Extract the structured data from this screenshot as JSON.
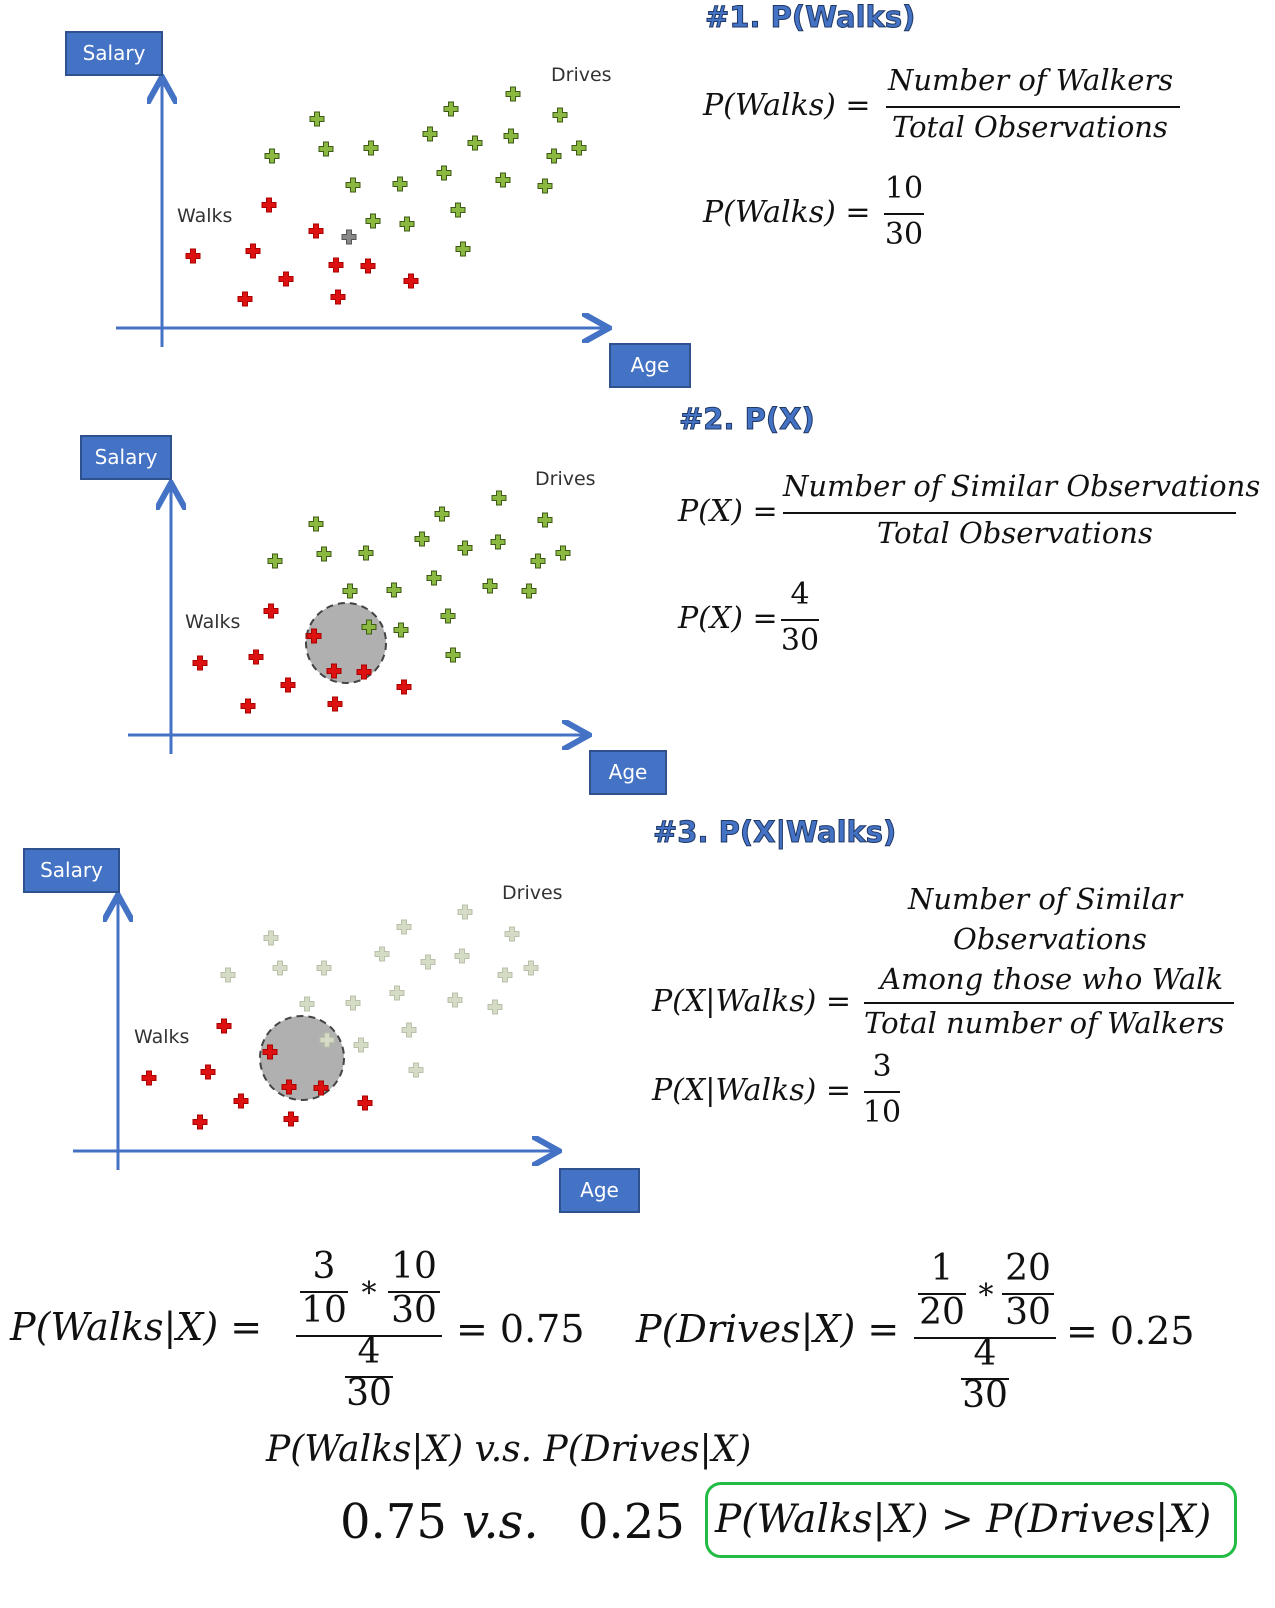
{
  "colors": {
    "axis": "#4472c4",
    "walks": "#dd1111",
    "drives": "#8ab840",
    "drives_faded": "#d4dcc6",
    "gray_point": "#888888",
    "circle": "#b0b0b0",
    "highlight_box": "#22bb44"
  },
  "panels": [
    {
      "heading": "#1. P(Walks)",
      "y_axis_label": "Salary",
      "x_axis_label": "Age",
      "walks_label": "Walks",
      "drives_label": "Drives",
      "formula_lhs": "P(Walks) =",
      "formula_numerator": "Number of Walkers",
      "formula_denominator": "Total Observations",
      "value_lhs": "P(Walks) =",
      "value_numerator": "10",
      "value_denominator": "30"
    },
    {
      "heading": "#2. P(X)",
      "y_axis_label": "Salary",
      "x_axis_label": "Age",
      "walks_label": "Walks",
      "drives_label": "Drives",
      "formula_lhs": "P(X) =",
      "formula_numerator": "Number of Similar Observations",
      "formula_denominator": "Total Observations",
      "value_lhs": "P(X) =",
      "value_numerator": "4",
      "value_denominator": "30"
    },
    {
      "heading": "#3. P(X|Walks)",
      "y_axis_label": "Salary",
      "x_axis_label": "Age",
      "walks_label": "Walks",
      "drives_label": "Drives",
      "formula_lhs": "P(X|Walks) =",
      "formula_numerator_line1": "Number of Similar",
      "formula_numerator_line2": "Observations",
      "formula_numerator_line3": "Among those who Walk",
      "formula_denominator": "Total number of Walkers",
      "value_lhs": "P(X|Walks) =",
      "value_numerator": "3",
      "value_denominator": "10"
    }
  ],
  "posterior_walks": {
    "lhs": "P(Walks|X) =",
    "a_num": "3",
    "a_den": "10",
    "times": "*",
    "b_num": "10",
    "b_den": "30",
    "c_num": "4",
    "c_den": "30",
    "result": "= 0.75"
  },
  "posterior_drives": {
    "lhs": "P(Drives|X) =",
    "a_num": "1",
    "a_den": "20",
    "times": "*",
    "b_num": "20",
    "b_den": "30",
    "c_num": "4",
    "c_den": "30",
    "result": "= 0.25"
  },
  "comparison": {
    "text": "P(Walks|X) v.s. P(Drives|X)",
    "values_left": "0.75",
    "values_vs": "v.s.",
    "values_right": "0.25",
    "conclusion": "P(Walks|X) > P(Drives|X)"
  }
}
